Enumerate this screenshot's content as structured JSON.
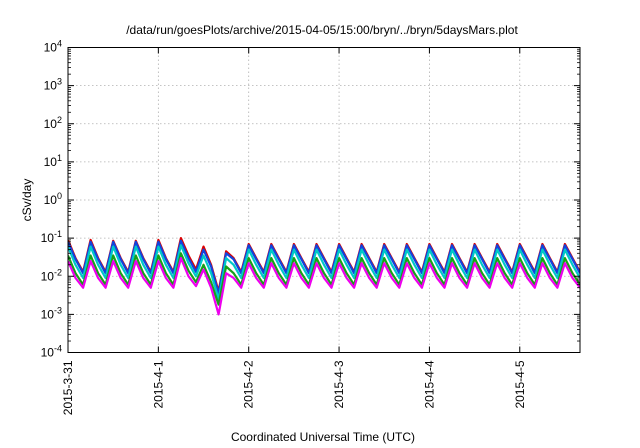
{
  "chart_data": {
    "type": "line",
    "title": "/data/run/goesPlots/archive/2015-04-05/15:00/bryn/../bryn/5daysMars.plot",
    "xlabel": "Coordinated Universal Time (UTC)",
    "ylabel": "cSv/day",
    "y_scale": "log",
    "ylim": [
      0.0001,
      10000
    ],
    "xlim": [
      "2015-03-31T00:00",
      "2015-04-05T16:00"
    ],
    "grid": true,
    "y_ticks": [
      {
        "value": 0.0001,
        "base": "10",
        "exp": "-4"
      },
      {
        "value": 0.001,
        "base": "10",
        "exp": "-3"
      },
      {
        "value": 0.01,
        "base": "10",
        "exp": "-2"
      },
      {
        "value": 0.1,
        "base": "10",
        "exp": "-1"
      },
      {
        "value": 1,
        "base": "10",
        "exp": "0"
      },
      {
        "value": 10,
        "base": "10",
        "exp": "1"
      },
      {
        "value": 100,
        "base": "10",
        "exp": "2"
      },
      {
        "value": 1000,
        "base": "10",
        "exp": "3"
      },
      {
        "value": 10000,
        "base": "10",
        "exp": "4"
      }
    ],
    "x_ticks": [
      {
        "value": "2015-03-31T00:00",
        "label": "2015-3-31"
      },
      {
        "value": "2015-04-01T00:00",
        "label": "2015-4-1"
      },
      {
        "value": "2015-04-02T00:00",
        "label": "2015-4-2"
      },
      {
        "value": "2015-04-03T00:00",
        "label": "2015-4-3"
      },
      {
        "value": "2015-04-04T00:00",
        "label": "2015-4-4"
      },
      {
        "value": "2015-04-05T00:00",
        "label": "2015-4-5"
      }
    ],
    "series": [
      {
        "color": "#dd0000",
        "x_start": "2015-03-31T00:00",
        "step_hours": 2,
        "values": [
          0.09,
          0.03,
          0.013,
          0.09,
          0.03,
          0.013,
          0.085,
          0.03,
          0.013,
          0.085,
          0.03,
          0.013,
          0.09,
          0.03,
          0.013,
          0.1,
          0.035,
          0.015,
          0.06,
          0.02,
          0.004,
          0.045,
          0.03,
          0.013,
          0.07,
          0.03,
          0.013,
          0.07,
          0.03,
          0.013,
          0.07,
          0.03,
          0.013,
          0.07,
          0.03,
          0.013,
          0.07,
          0.03,
          0.013,
          0.07,
          0.03,
          0.013,
          0.07,
          0.03,
          0.013,
          0.07,
          0.03,
          0.013,
          0.07,
          0.03,
          0.013,
          0.07,
          0.03,
          0.013,
          0.07,
          0.03,
          0.013,
          0.07,
          0.03,
          0.013,
          0.07,
          0.03,
          0.013,
          0.07,
          0.03,
          0.013,
          0.07,
          0.03,
          0.013
        ]
      },
      {
        "color": "#1144dd",
        "x_start": "2015-03-31T00:00",
        "step_hours": 2,
        "values": [
          0.08,
          0.028,
          0.012,
          0.08,
          0.028,
          0.012,
          0.08,
          0.028,
          0.012,
          0.08,
          0.028,
          0.012,
          0.08,
          0.028,
          0.012,
          0.085,
          0.03,
          0.013,
          0.05,
          0.018,
          0.0035,
          0.04,
          0.028,
          0.012,
          0.065,
          0.028,
          0.012,
          0.065,
          0.028,
          0.012,
          0.065,
          0.028,
          0.012,
          0.065,
          0.028,
          0.012,
          0.065,
          0.028,
          0.012,
          0.065,
          0.028,
          0.012,
          0.065,
          0.028,
          0.012,
          0.065,
          0.028,
          0.012,
          0.065,
          0.028,
          0.012,
          0.065,
          0.028,
          0.012,
          0.065,
          0.028,
          0.012,
          0.065,
          0.028,
          0.012,
          0.065,
          0.028,
          0.012,
          0.065,
          0.028,
          0.012,
          0.065,
          0.028,
          0.012
        ]
      },
      {
        "color": "#00c8c8",
        "x_start": "2015-03-31T00:00",
        "step_hours": 2,
        "values": [
          0.06,
          0.02,
          0.009,
          0.06,
          0.02,
          0.009,
          0.06,
          0.02,
          0.009,
          0.06,
          0.02,
          0.009,
          0.06,
          0.02,
          0.009,
          0.065,
          0.022,
          0.01,
          0.035,
          0.012,
          0.0025,
          0.03,
          0.02,
          0.009,
          0.05,
          0.02,
          0.009,
          0.05,
          0.02,
          0.009,
          0.05,
          0.02,
          0.009,
          0.05,
          0.02,
          0.009,
          0.05,
          0.02,
          0.009,
          0.05,
          0.02,
          0.009,
          0.05,
          0.02,
          0.009,
          0.05,
          0.02,
          0.009,
          0.05,
          0.02,
          0.009,
          0.05,
          0.02,
          0.009,
          0.05,
          0.02,
          0.009,
          0.05,
          0.02,
          0.009,
          0.05,
          0.02,
          0.009,
          0.05,
          0.02,
          0.009,
          0.05,
          0.02,
          0.009
        ]
      },
      {
        "color": "#18a018",
        "x_start": "2015-03-31T00:00",
        "step_hours": 2,
        "values": [
          0.035,
          0.012,
          0.006,
          0.035,
          0.012,
          0.006,
          0.035,
          0.012,
          0.006,
          0.035,
          0.012,
          0.006,
          0.035,
          0.012,
          0.006,
          0.04,
          0.014,
          0.007,
          0.02,
          0.007,
          0.0018,
          0.018,
          0.012,
          0.006,
          0.03,
          0.012,
          0.006,
          0.03,
          0.012,
          0.006,
          0.03,
          0.012,
          0.006,
          0.03,
          0.012,
          0.006,
          0.03,
          0.012,
          0.006,
          0.03,
          0.012,
          0.006,
          0.03,
          0.012,
          0.006,
          0.03,
          0.012,
          0.006,
          0.03,
          0.012,
          0.006,
          0.03,
          0.012,
          0.006,
          0.03,
          0.012,
          0.006,
          0.03,
          0.012,
          0.006,
          0.03,
          0.012,
          0.006,
          0.03,
          0.012,
          0.006,
          0.03,
          0.012,
          0.006
        ]
      },
      {
        "color": "#ee00ee",
        "x_start": "2015-03-31T00:00",
        "step_hours": 2,
        "values": [
          0.025,
          0.009,
          0.005,
          0.025,
          0.009,
          0.005,
          0.025,
          0.009,
          0.005,
          0.025,
          0.009,
          0.005,
          0.025,
          0.009,
          0.005,
          0.03,
          0.01,
          0.0055,
          0.015,
          0.005,
          0.001,
          0.012,
          0.009,
          0.005,
          0.022,
          0.009,
          0.005,
          0.022,
          0.009,
          0.005,
          0.022,
          0.009,
          0.005,
          0.022,
          0.009,
          0.005,
          0.022,
          0.009,
          0.005,
          0.022,
          0.009,
          0.005,
          0.022,
          0.009,
          0.005,
          0.022,
          0.009,
          0.005,
          0.022,
          0.009,
          0.005,
          0.022,
          0.009,
          0.005,
          0.022,
          0.009,
          0.005,
          0.022,
          0.009,
          0.005,
          0.022,
          0.009,
          0.005,
          0.022,
          0.009,
          0.005,
          0.022,
          0.009,
          0.005
        ]
      }
    ]
  }
}
